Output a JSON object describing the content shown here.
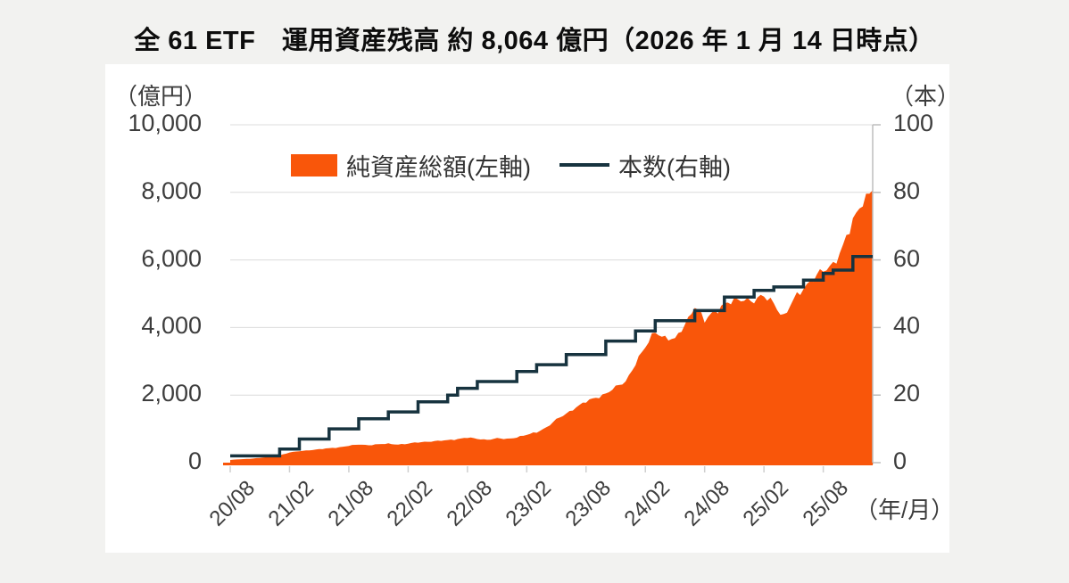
{
  "title": "全 61 ETF　運用資産残高 約 8,064 億円（2026 年 1 月 14 日時点）",
  "colors": {
    "area_orange": "#f9560a",
    "line_dark": "#17333f",
    "gridline": "#dcdcdc",
    "axis_gray": "#bdbdbd",
    "xtick_gray": "#cfcfcf",
    "panel_bg": "#ffffff",
    "page_bg": "#f2f2f0",
    "text_dark": "#3d3d3d"
  },
  "chart_data": {
    "type": "area",
    "title": "全 61 ETF　運用資産残高 約 8,064 億円（2026 年 1 月 14 日時点）",
    "grid": "horizontal",
    "legend_position": "top-center-inside",
    "x_unit": "（年/月）",
    "x_start": "2020/08",
    "x_end": "2026/01",
    "x_interval": "month",
    "x_months_total": 65,
    "x_tick_labels": [
      "20/08",
      "21/02",
      "21/08",
      "22/02",
      "22/08",
      "23/02",
      "23/08",
      "24/02",
      "24/08",
      "25/02",
      "25/08"
    ],
    "x_tick_month_step": 6,
    "left_axis": {
      "unit": "（億円）",
      "range": [
        0,
        10000
      ],
      "ticks": [
        10000,
        8000,
        6000,
        4000,
        2000,
        0
      ],
      "tick_labels": [
        "10,000",
        "8,000",
        "6,000",
        "4,000",
        "2,000",
        "0"
      ]
    },
    "right_axis": {
      "unit": "（本）",
      "range": [
        0,
        100
      ],
      "ticks": [
        100,
        80,
        60,
        40,
        20,
        0
      ],
      "tick_labels": [
        "100",
        "80",
        "60",
        "40",
        "20",
        "0"
      ]
    },
    "series": [
      {
        "name": "純資産総額(左軸)",
        "type": "area",
        "axis": "left",
        "color": "#f9560a",
        "values_monthly_okuyen": [
          80,
          100,
          115,
          140,
          170,
          220,
          300,
          340,
          370,
          395,
          425,
          455,
          500,
          535,
          520,
          545,
          560,
          540,
          560,
          600,
          625,
          640,
          665,
          700,
          740,
          705,
          680,
          715,
          700,
          755,
          820,
          900,
          1050,
          1270,
          1450,
          1650,
          1800,
          1920,
          2050,
          2220,
          2400,
          2950,
          3400,
          3900,
          3700,
          3620,
          4100,
          4650,
          4180,
          4500,
          4700,
          4760,
          4860,
          4800,
          4900,
          4750,
          4300,
          4800,
          5200,
          5450,
          5650,
          5900,
          6400,
          7100,
          7800,
          8064
        ],
        "final_value": 8064
      },
      {
        "name": "本数(右軸)",
        "type": "step-line",
        "axis": "right",
        "color": "#17333f",
        "points_month_count": [
          [
            0,
            2
          ],
          [
            5,
            4
          ],
          [
            7,
            7
          ],
          [
            10,
            10
          ],
          [
            13,
            13
          ],
          [
            16,
            15
          ],
          [
            19,
            18
          ],
          [
            22,
            20
          ],
          [
            23,
            22
          ],
          [
            25,
            24
          ],
          [
            29,
            27
          ],
          [
            31,
            29
          ],
          [
            34,
            32
          ],
          [
            38,
            36
          ],
          [
            41,
            39
          ],
          [
            43,
            42
          ],
          [
            47,
            45
          ],
          [
            50,
            49
          ],
          [
            53,
            51
          ],
          [
            55,
            52
          ],
          [
            58,
            54
          ],
          [
            60,
            56
          ],
          [
            61,
            57
          ],
          [
            63,
            61
          ],
          [
            65,
            61
          ]
        ],
        "final_value": 61
      }
    ]
  }
}
